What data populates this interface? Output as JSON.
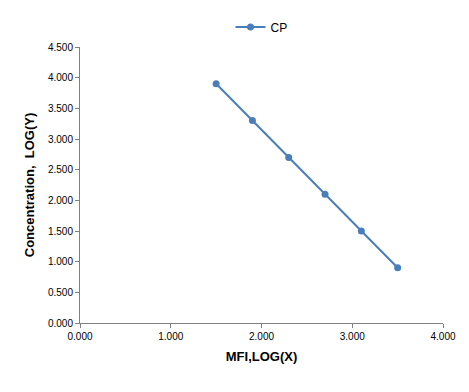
{
  "chart_data": {
    "type": "line",
    "xlabel": "MFI,LOG(X)",
    "ylabel": "Concentration,  LOG(Y)",
    "series": [
      {
        "name": "CP",
        "color": "#4a7ebb",
        "marker": "circle",
        "line_style": "solid",
        "x": [
          1.5,
          1.9,
          2.3,
          2.7,
          3.1,
          3.5
        ],
        "values": [
          3.9,
          3.3,
          2.7,
          2.1,
          1.5,
          0.9
        ]
      }
    ],
    "xlim": [
      0,
      4
    ],
    "xticks": [
      {
        "value": 0,
        "label": "0.000"
      },
      {
        "value": 1,
        "label": "1.000"
      },
      {
        "value": 2,
        "label": "2.000"
      },
      {
        "value": 3,
        "label": "3.000"
      },
      {
        "value": 4,
        "label": "4.000"
      }
    ],
    "ylim": [
      0,
      4.5
    ],
    "yticks": [
      {
        "value": 0,
        "label": "0.000"
      },
      {
        "value": 0.5,
        "label": "0.500"
      },
      {
        "value": 1,
        "label": "1.000"
      },
      {
        "value": 1.5,
        "label": "1.500"
      },
      {
        "value": 2,
        "label": "2.000"
      },
      {
        "value": 2.5,
        "label": "2.500"
      },
      {
        "value": 3,
        "label": "3.000"
      },
      {
        "value": 3.5,
        "label": "3.500"
      },
      {
        "value": 4,
        "label": "4.000"
      },
      {
        "value": 4.5,
        "label": "4.500"
      }
    ],
    "grid": false,
    "legend": "top"
  }
}
